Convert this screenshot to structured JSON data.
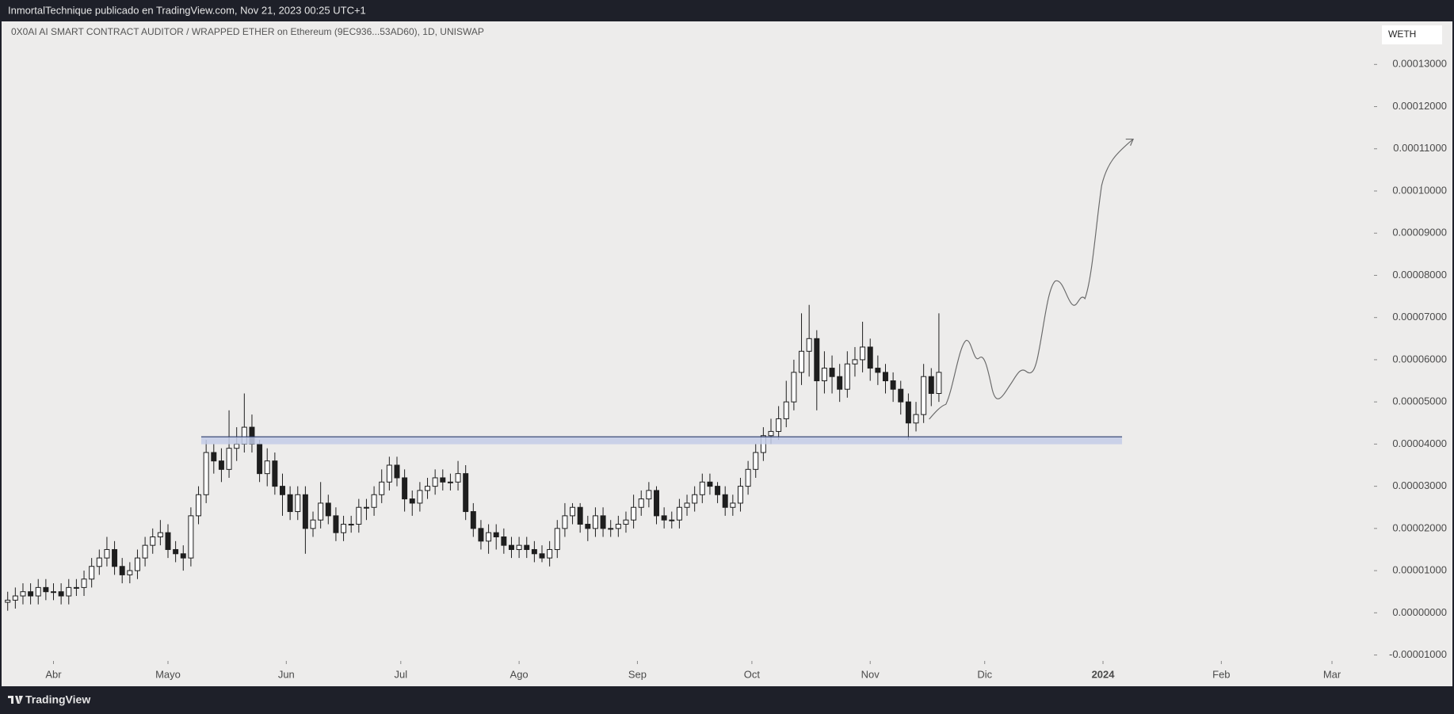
{
  "header": {
    "publisher": "InmortalTechnique publicado en TradingView.com, Nov 21, 2023 00:25 UTC+1"
  },
  "footer": {
    "brand": "TradingView"
  },
  "chart_data": {
    "type": "candlestick",
    "title": "0X0AI AI SMART CONTRACT AUDITOR / WRAPPED ETHER on Ethereum (9EC936...53AD60), 1D, UNISWAP",
    "currency": "WETH",
    "up_color": "#ffffff",
    "down_color": "#1e1e1e",
    "border_color": "#1e1e1e",
    "xlim": [
      -13.6,
      346
    ],
    "xticks": [
      {
        "value": 0,
        "label": "Abr"
      },
      {
        "value": 30,
        "label": "Mayo"
      },
      {
        "value": 61,
        "label": "Jun"
      },
      {
        "value": 91,
        "label": "Jul"
      },
      {
        "value": 122,
        "label": "Ago"
      },
      {
        "value": 153,
        "label": "Sep"
      },
      {
        "value": 183,
        "label": "Oct"
      },
      {
        "value": 214,
        "label": "Nov"
      },
      {
        "value": 244,
        "label": "Dic"
      },
      {
        "value": 275,
        "label": "2024"
      },
      {
        "value": 306,
        "label": "Feb"
      },
      {
        "value": 335,
        "label": "Mar"
      }
    ],
    "ylim": [
      -1.14e-05,
      0.0001402
    ],
    "yticks": [
      {
        "value": -1e-05,
        "label": "-0.00001000"
      },
      {
        "value": 0,
        "label": "0.00000000"
      },
      {
        "value": 1e-05,
        "label": "0.00001000"
      },
      {
        "value": 2e-05,
        "label": "0.00002000"
      },
      {
        "value": 3e-05,
        "label": "0.00003000"
      },
      {
        "value": 4e-05,
        "label": "0.00004000"
      },
      {
        "value": 5e-05,
        "label": "0.00005000"
      },
      {
        "value": 6e-05,
        "label": "0.00006000"
      },
      {
        "value": 7e-05,
        "label": "0.00007000"
      },
      {
        "value": 8e-05,
        "label": "0.00008000"
      },
      {
        "value": 9e-05,
        "label": "0.00009000"
      },
      {
        "value": 0.0001,
        "label": "0.00010000"
      },
      {
        "value": 0.00011,
        "label": "0.00011000"
      },
      {
        "value": 0.00012,
        "label": "0.00012000"
      },
      {
        "value": 0.00013,
        "label": "0.00013000"
      }
    ],
    "x": [
      -12,
      -10,
      -8,
      -6,
      -4,
      -2,
      0,
      2,
      4,
      6,
      8,
      10,
      12,
      14,
      16,
      18,
      20,
      22,
      24,
      26,
      28,
      30,
      32,
      34,
      36,
      38,
      40,
      42,
      44,
      46,
      48,
      50,
      52,
      54,
      56,
      58,
      60,
      62,
      64,
      66,
      68,
      70,
      72,
      74,
      76,
      78,
      80,
      82,
      84,
      86,
      88,
      90,
      92,
      94,
      96,
      98,
      100,
      102,
      104,
      106,
      108,
      110,
      112,
      114,
      116,
      118,
      120,
      122,
      124,
      126,
      128,
      130,
      132,
      134,
      136,
      138,
      140,
      142,
      144,
      146,
      148,
      150,
      152,
      154,
      156,
      158,
      160,
      162,
      164,
      166,
      168,
      170,
      172,
      174,
      176,
      178,
      180,
      182,
      184,
      186,
      188,
      190,
      192,
      194,
      196,
      198,
      200,
      202,
      204,
      206,
      208,
      210,
      212,
      214,
      216,
      218,
      220,
      222,
      224,
      226,
      228,
      230,
      232
    ],
    "open": [
      2.5e-06,
      3e-06,
      4e-06,
      5e-06,
      4e-06,
      6e-06,
      5e-06,
      5e-06,
      4e-06,
      6e-06,
      6e-06,
      8e-06,
      1.1e-05,
      1.3e-05,
      1.5e-05,
      1.1e-05,
      9e-06,
      1e-05,
      1.3e-05,
      1.6e-05,
      1.8e-05,
      1.9e-05,
      1.5e-05,
      1.4e-05,
      1.3e-05,
      2.3e-05,
      2.8e-05,
      3.8e-05,
      3.6e-05,
      3.4e-05,
      3.9e-05,
      4e-05,
      4.4e-05,
      4e-05,
      3.3e-05,
      3.6e-05,
      3e-05,
      2.8e-05,
      2.4e-05,
      2.8e-05,
      2e-05,
      2.2e-05,
      2.6e-05,
      2.3e-05,
      1.9e-05,
      2.1e-05,
      2.1e-05,
      2.5e-05,
      2.5e-05,
      2.8e-05,
      3.1e-05,
      3.5e-05,
      3.2e-05,
      2.7e-05,
      2.6e-05,
      2.9e-05,
      3e-05,
      3.2e-05,
      3.1e-05,
      3.1e-05,
      3.3e-05,
      2.4e-05,
      2e-05,
      1.7e-05,
      1.9e-05,
      1.8e-05,
      1.6e-05,
      1.5e-05,
      1.6e-05,
      1.5e-05,
      1.4e-05,
      1.3e-05,
      1.5e-05,
      2e-05,
      2.3e-05,
      2.5e-05,
      2.1e-05,
      2e-05,
      2.3e-05,
      2e-05,
      2e-05,
      2.1e-05,
      2.2e-05,
      2.5e-05,
      2.7e-05,
      2.9e-05,
      2.3e-05,
      2.2e-05,
      2.2e-05,
      2.5e-05,
      2.6e-05,
      2.8e-05,
      3.1e-05,
      3e-05,
      2.8e-05,
      2.5e-05,
      2.6e-05,
      3e-05,
      3.4e-05,
      3.8e-05,
      4.2e-05,
      4.3e-05,
      4.6e-05,
      5e-05,
      5.7e-05,
      6.2e-05,
      6.5e-05,
      5.5e-05,
      5.8e-05,
      5.6e-05,
      5.3e-05,
      5.9e-05,
      6e-05,
      6.3e-05,
      5.8e-05,
      5.7e-05,
      5.5e-05,
      5.3e-05,
      5e-05,
      4.5e-05,
      4.7e-05,
      5.6e-05,
      5.2e-05
    ],
    "high": [
      5e-06,
      6e-06,
      7e-06,
      7e-06,
      8e-06,
      8e-06,
      7e-06,
      7e-06,
      8e-06,
      8e-06,
      1e-05,
      1.3e-05,
      1.5e-05,
      1.8e-05,
      1.7e-05,
      1.3e-05,
      1.2e-05,
      1.5e-05,
      1.8e-05,
      2e-05,
      2.2e-05,
      2.1e-05,
      1.7e-05,
      1.6e-05,
      2.5e-05,
      3e-05,
      4.1e-05,
      4e-05,
      3.9e-05,
      4.8e-05,
      4.4e-05,
      5.2e-05,
      4.7e-05,
      4.1e-05,
      3.9e-05,
      3.8e-05,
      3.3e-05,
      3e-05,
      3e-05,
      3e-05,
      2.4e-05,
      3.1e-05,
      2.8e-05,
      2.5e-05,
      2.3e-05,
      2.3e-05,
      2.7e-05,
      2.7e-05,
      3e-05,
      3.4e-05,
      3.7e-05,
      3.7e-05,
      3.4e-05,
      2.9e-05,
      3.1e-05,
      3.2e-05,
      3.4e-05,
      3.4e-05,
      3.3e-05,
      3.6e-05,
      3.5e-05,
      2.6e-05,
      2.2e-05,
      2.1e-05,
      2.1e-05,
      2e-05,
      1.8e-05,
      1.8e-05,
      1.8e-05,
      1.7e-05,
      1.6e-05,
      1.7e-05,
      2.2e-05,
      2.6e-05,
      2.6e-05,
      2.6e-05,
      2.3e-05,
      2.5e-05,
      2.5e-05,
      2.2e-05,
      2.3e-05,
      2.4e-05,
      2.8e-05,
      2.9e-05,
      3.1e-05,
      3e-05,
      2.5e-05,
      2.4e-05,
      2.7e-05,
      2.8e-05,
      3e-05,
      3.3e-05,
      3.3e-05,
      3.1e-05,
      3e-05,
      2.8e-05,
      3.2e-05,
      3.6e-05,
      4e-05,
      4.4e-05,
      4.6e-05,
      4.9e-05,
      5.5e-05,
      6e-05,
      7.1e-05,
      7.3e-05,
      6.7e-05,
      6.2e-05,
      6.1e-05,
      5.9e-05,
      6.2e-05,
      6.3e-05,
      6.9e-05,
      6.5e-05,
      6.1e-05,
      5.9e-05,
      5.7e-05,
      5.5e-05,
      5.2e-05,
      5e-05,
      5.9e-05,
      5.8e-05,
      7.1e-05
    ],
    "low": [
      5e-07,
      1e-06,
      2e-06,
      2e-06,
      2e-06,
      3e-06,
      3e-06,
      2e-06,
      2e-06,
      4e-06,
      4e-06,
      6e-06,
      9e-06,
      1.1e-05,
      9e-06,
      7e-06,
      7e-06,
      8e-06,
      1.1e-05,
      1.4e-05,
      1.6e-05,
      1.3e-05,
      1.2e-05,
      1e-05,
      1.1e-05,
      2.1e-05,
      2.6e-05,
      3.3e-05,
      3.1e-05,
      3.2e-05,
      3.6e-05,
      3.8e-05,
      3.8e-05,
      3.1e-05,
      3e-05,
      2.8e-05,
      2.3e-05,
      2.2e-05,
      2.2e-05,
      1.4e-05,
      1.8e-05,
      2e-05,
      2.1e-05,
      1.7e-05,
      1.7e-05,
      1.9e-05,
      1.9e-05,
      2.2e-05,
      2.3e-05,
      2.6e-05,
      2.9e-05,
      3e-05,
      2.4e-05,
      2.3e-05,
      2.4e-05,
      2.7e-05,
      2.8e-05,
      2.9e-05,
      2.9e-05,
      2.9e-05,
      2.2e-05,
      1.8e-05,
      1.5e-05,
      1.4e-05,
      1.5e-05,
      1.4e-05,
      1.3e-05,
      1.3e-05,
      1.3e-05,
      1.2e-05,
      1.2e-05,
      1.1e-05,
      1.3e-05,
      1.8e-05,
      2.1e-05,
      1.9e-05,
      1.7e-05,
      1.8e-05,
      1.8e-05,
      1.8e-05,
      1.8e-05,
      1.9e-05,
      2e-05,
      2.3e-05,
      2.5e-05,
      2.1e-05,
      2e-05,
      2e-05,
      2e-05,
      2.3e-05,
      2.4e-05,
      2.6e-05,
      2.8e-05,
      2.6e-05,
      2.3e-05,
      2.3e-05,
      2.4e-05,
      2.8e-05,
      3.2e-05,
      3.6e-05,
      4e-05,
      4.1e-05,
      4.4e-05,
      4.8e-05,
      5.4e-05,
      5.6e-05,
      4.8e-05,
      5.2e-05,
      5.2e-05,
      5e-05,
      5.1e-05,
      5.6e-05,
      5.7e-05,
      5.5e-05,
      5.4e-05,
      5.2e-05,
      5e-05,
      4.7e-05,
      4.1e-05,
      4.3e-05,
      4.5e-05,
      4.9e-05,
      5e-05
    ],
    "close": [
      3e-06,
      4e-06,
      5e-06,
      4e-06,
      6e-06,
      5e-06,
      5e-06,
      4e-06,
      6e-06,
      6e-06,
      8e-06,
      1.1e-05,
      1.3e-05,
      1.5e-05,
      1.1e-05,
      9e-06,
      1e-05,
      1.3e-05,
      1.6e-05,
      1.8e-05,
      1.9e-05,
      1.5e-05,
      1.4e-05,
      1.3e-05,
      2.3e-05,
      2.8e-05,
      3.8e-05,
      3.6e-05,
      3.4e-05,
      3.9e-05,
      4e-05,
      4.4e-05,
      4e-05,
      3.3e-05,
      3.6e-05,
      3e-05,
      2.8e-05,
      2.4e-05,
      2.8e-05,
      2e-05,
      2.2e-05,
      2.6e-05,
      2.3e-05,
      1.9e-05,
      2.1e-05,
      2.1e-05,
      2.5e-05,
      2.5e-05,
      2.8e-05,
      3.1e-05,
      3.5e-05,
      3.2e-05,
      2.7e-05,
      2.6e-05,
      2.9e-05,
      3e-05,
      3.2e-05,
      3.1e-05,
      3.1e-05,
      3.3e-05,
      2.4e-05,
      2e-05,
      1.7e-05,
      1.9e-05,
      1.8e-05,
      1.6e-05,
      1.5e-05,
      1.6e-05,
      1.5e-05,
      1.4e-05,
      1.3e-05,
      1.5e-05,
      2e-05,
      2.3e-05,
      2.5e-05,
      2.1e-05,
      2e-05,
      2.3e-05,
      2e-05,
      2e-05,
      2.1e-05,
      2.2e-05,
      2.5e-05,
      2.7e-05,
      2.9e-05,
      2.3e-05,
      2.2e-05,
      2.2e-05,
      2.5e-05,
      2.6e-05,
      2.8e-05,
      3.1e-05,
      3e-05,
      2.8e-05,
      2.5e-05,
      2.6e-05,
      3e-05,
      3.4e-05,
      3.8e-05,
      4.2e-05,
      4.3e-05,
      4.6e-05,
      5e-05,
      5.7e-05,
      6.2e-05,
      6.5e-05,
      5.5e-05,
      5.8e-05,
      5.6e-05,
      5.3e-05,
      5.9e-05,
      6e-05,
      6.3e-05,
      5.8e-05,
      5.7e-05,
      5.5e-05,
      5.3e-05,
      5e-05,
      4.5e-05,
      4.7e-05,
      5.6e-05,
      5.2e-05,
      5.7e-05
    ]
  }
}
